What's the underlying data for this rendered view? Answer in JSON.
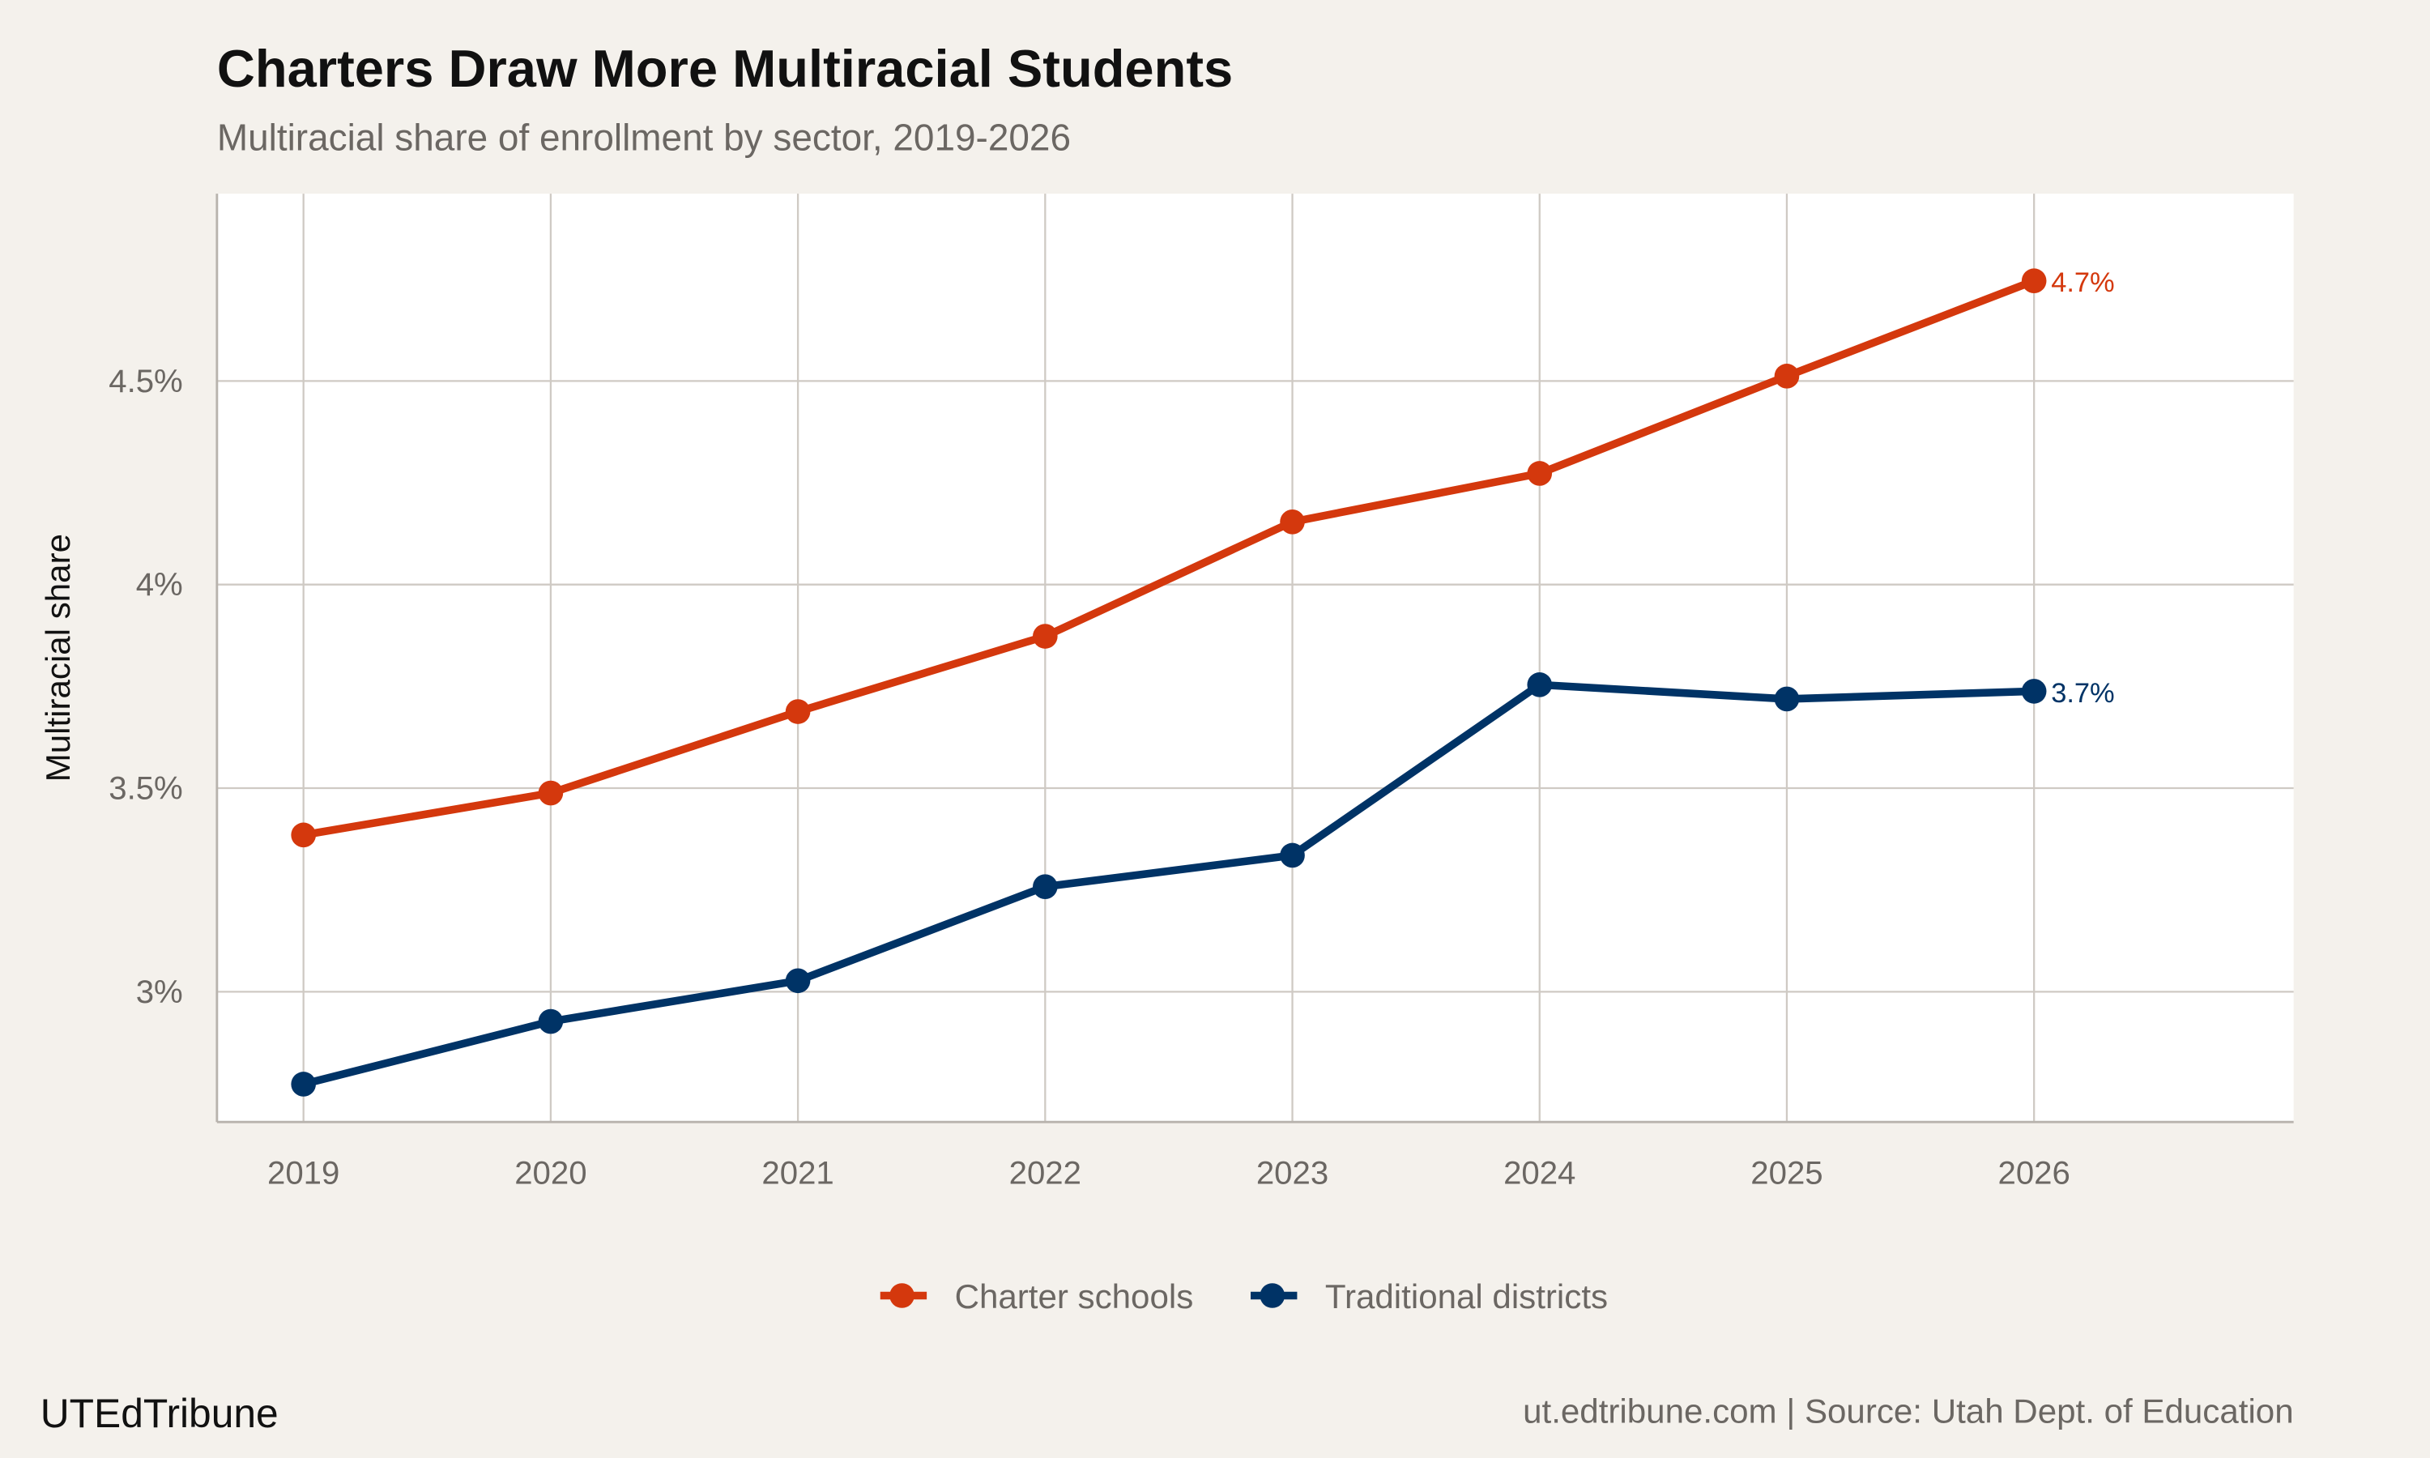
{
  "chart_data": {
    "type": "line",
    "title": "Charters Draw More Multiracial Students",
    "subtitle": "Multiracial share of enrollment by sector, 2019-2026",
    "xlabel": "",
    "ylabel": "Multiracial share",
    "x": [
      2019,
      2020,
      2021,
      2022,
      2023,
      2024,
      2025,
      2026
    ],
    "x_tick_labels": [
      "2019",
      "2020",
      "2021",
      "2022",
      "2023",
      "2024",
      "2025",
      "2026"
    ],
    "y_ticks": [
      3,
      3.5,
      4,
      4.5
    ],
    "y_tick_labels": [
      "3%",
      "3.5%",
      "4%",
      "4.5%"
    ],
    "ylim": [
      2.68,
      4.96
    ],
    "xlim": [
      2018.65,
      2027.05
    ],
    "grid": true,
    "legend_position": "bottom",
    "series": [
      {
        "name": "Charter schools",
        "color": "#D4380D",
        "values": [
          3.385,
          3.488,
          3.688,
          3.873,
          4.154,
          4.273,
          4.512,
          4.746
        ],
        "end_label": "4.7%"
      },
      {
        "name": "Traditional districts",
        "color": "#003366",
        "values": [
          2.773,
          2.927,
          3.027,
          3.258,
          3.335,
          3.754,
          3.719,
          3.738
        ],
        "end_label": "3.7%"
      }
    ]
  },
  "footer": {
    "brand": "UTEdTribune",
    "source": "ut.edtribune.com | Source: Utah Dept. of Education"
  }
}
